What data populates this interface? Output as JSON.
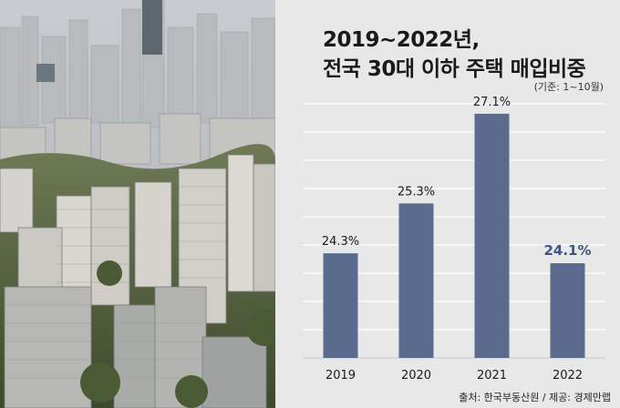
{
  "title_line1": "2019~2022년,",
  "title_line2": "전국 30대 이하 주택 매입비중",
  "basis_note": "(기준: 1~10월)",
  "source": "출처: 한국부동산원 / 제공: 경제만랩",
  "colors": {
    "bar": "#5a6b8e",
    "highlight_label": "#41558a",
    "label": "#1a1a1a",
    "grid": "#ffffff",
    "panel": "#e8e8e8"
  },
  "chart_data": {
    "type": "bar",
    "title": "2019~2022년, 전국 30대 이하 주택 매입비중",
    "categories": [
      "2019",
      "2020",
      "2021",
      "2022"
    ],
    "values": [
      24.3,
      25.3,
      27.1,
      24.1
    ],
    "data_labels": [
      "24.3%",
      "25.3%",
      "27.1%",
      "24.1%"
    ],
    "highlight_index": 3,
    "ylim": [
      22.2,
      27.3
    ],
    "grid": true,
    "xlabel": "",
    "ylabel": ""
  }
}
